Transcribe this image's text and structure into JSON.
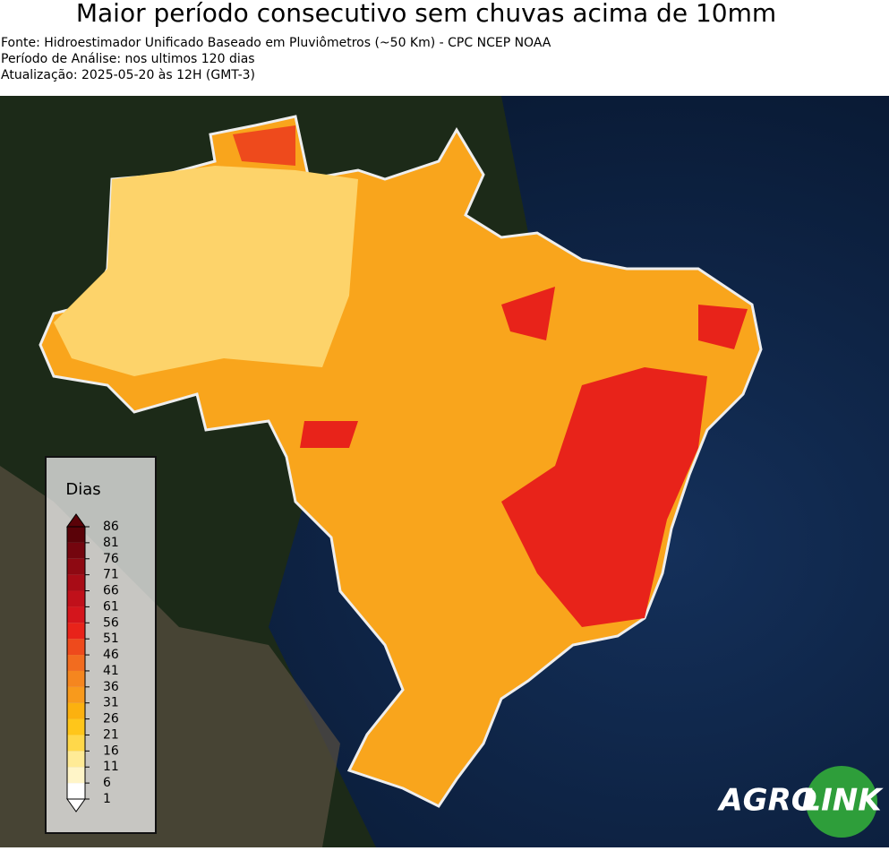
{
  "header": {
    "title": "Maior período consecutivo sem chuvas acima de 10mm",
    "lines": [
      "Fonte: Hidroestimador Unificado Baseado em Pluviômetros (~50 Km) - CPC NCEP NOAA",
      "Período de Análise: nos ultimos 120 dias",
      "Atualização: 2025-05-20 às 12H (GMT-3)"
    ]
  },
  "legend": {
    "title": "Dias",
    "ticks": [
      1,
      6,
      11,
      16,
      21,
      26,
      31,
      36,
      41,
      46,
      51,
      56,
      61,
      66,
      71,
      76,
      81,
      86
    ],
    "colors": [
      "#ffffff",
      "#fff5c8",
      "#ffeb96",
      "#ffd84a",
      "#ffc61a",
      "#fcb10f",
      "#f89a1c",
      "#f5861f",
      "#f26c1f",
      "#ee4a1c",
      "#e8231a",
      "#d4151c",
      "#c0101a",
      "#a80c16",
      "#8e0912",
      "#74050e",
      "#5a0208"
    ]
  },
  "logo": {
    "left": "AGRO",
    "right": "LINK"
  }
}
